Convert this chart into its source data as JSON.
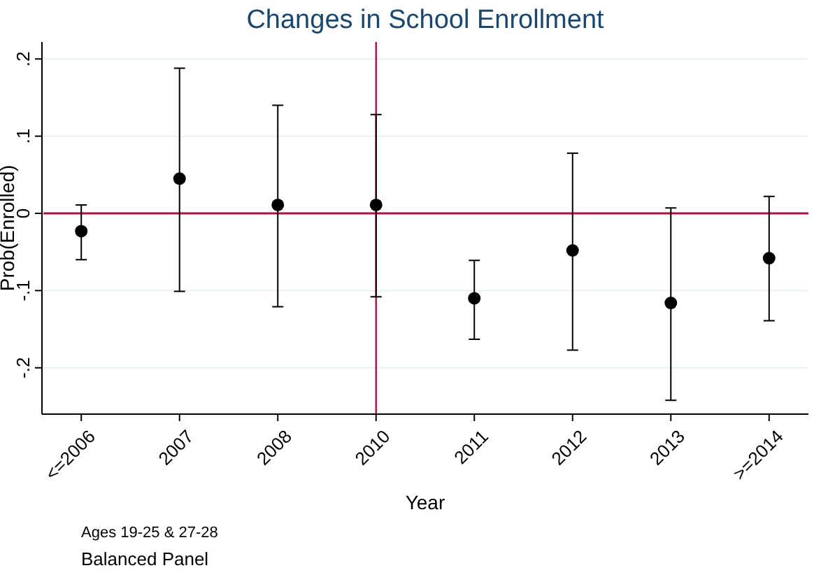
{
  "chart_data": {
    "type": "scatter",
    "title": "Changes in School Enrollment",
    "xlabel": "Year",
    "ylabel": "Prob(Enrolled)",
    "categories": [
      "<=2006",
      "2007",
      "2008",
      "2010",
      "2011",
      "2012",
      "2013",
      ">=2014"
    ],
    "series": [
      {
        "color": "#000000",
        "values": [
          -0.023,
          0.045,
          0.011,
          0.011,
          -0.11,
          -0.048,
          -0.116,
          -0.058
        ],
        "errors": [
          [
            -0.06,
            0.011
          ],
          [
            -0.101,
            0.188
          ],
          [
            -0.121,
            0.14
          ],
          [
            -0.108,
            0.128
          ],
          [
            -0.163,
            -0.061
          ],
          [
            -0.177,
            0.078
          ],
          [
            -0.242,
            0.007
          ],
          [
            -0.139,
            0.022
          ]
        ]
      }
    ],
    "ylim": [
      -0.26,
      0.222
    ],
    "yticks": [
      {
        "value": -0.2,
        "label": "-.2"
      },
      {
        "value": -0.1,
        "label": "-.1"
      },
      0,
      {
        "value": 0.1,
        "label": ".1"
      },
      {
        "value": 0.2,
        "label": ".2"
      }
    ],
    "grid": "y",
    "marker": "circle",
    "ref_lines": [
      {
        "axis": "y",
        "value": 0,
        "color": "#b0104a"
      },
      {
        "axis": "x",
        "value": "2010",
        "color": "#b0104a"
      }
    ],
    "annotations": [
      "Ages 19-25 & 27-28",
      "Balanced Panel"
    ]
  }
}
